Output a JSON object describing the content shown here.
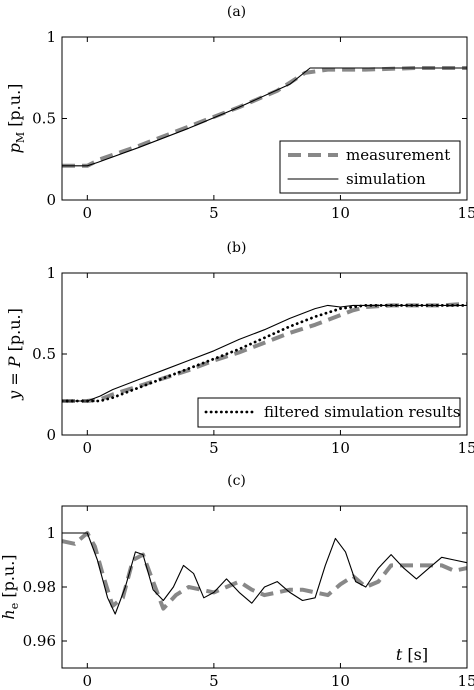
{
  "chart_data": [
    {
      "type": "line",
      "panel_label": "(a)",
      "ylabel": "p_M [p.u.]",
      "ylabel_main": "p",
      "ylabel_sub": "M",
      "ylabel_unit": " [p.u.]",
      "xlim": [
        -1,
        15
      ],
      "ylim": [
        0,
        1
      ],
      "xticks": [
        0,
        5,
        10,
        15
      ],
      "yticks": [
        0,
        0.5,
        1
      ],
      "ytick_labels": [
        "0",
        "0.5",
        "1"
      ],
      "legend_position": "bottom-right",
      "series": [
        {
          "name": "measurement",
          "style": "dashed",
          "color": "#888888",
          "x": [
            -1,
            0,
            0.5,
            2,
            4,
            6,
            7.5,
            8.6,
            9.5,
            11,
            13,
            15
          ],
          "y": [
            0.21,
            0.21,
            0.25,
            0.33,
            0.45,
            0.57,
            0.67,
            0.78,
            0.8,
            0.8,
            0.81,
            0.81
          ]
        },
        {
          "name": "simulation",
          "style": "solid",
          "color": "#000000",
          "x": [
            -1,
            0,
            0.4,
            2,
            4,
            6,
            8,
            8.8,
            9.5,
            11,
            13,
            15
          ],
          "y": [
            0.21,
            0.21,
            0.23,
            0.32,
            0.44,
            0.57,
            0.71,
            0.81,
            0.81,
            0.81,
            0.81,
            0.81
          ]
        }
      ]
    },
    {
      "type": "line",
      "panel_label": "(b)",
      "ylabel": "y = P [p.u.]",
      "ylabel_main": "y = P",
      "ylabel_unit": " [p.u.]",
      "xlim": [
        -1,
        15
      ],
      "ylim": [
        0,
        1
      ],
      "xticks": [
        0,
        5,
        10,
        15
      ],
      "yticks": [
        0,
        0.5,
        1
      ],
      "ytick_labels": [
        "0",
        "0.5",
        "1"
      ],
      "legend_position": "bottom-right",
      "series": [
        {
          "style": "dashed",
          "color": "#888888",
          "x": [
            -1,
            0,
            0.5,
            1,
            2,
            3,
            4,
            5,
            6,
            7,
            8,
            9,
            10,
            10.5,
            11,
            12,
            13,
            14,
            15
          ],
          "y": [
            0.21,
            0.21,
            0.22,
            0.25,
            0.3,
            0.35,
            0.4,
            0.46,
            0.51,
            0.57,
            0.63,
            0.68,
            0.74,
            0.77,
            0.79,
            0.8,
            0.8,
            0.8,
            0.81
          ]
        },
        {
          "style": "solid",
          "color": "#000000",
          "x": [
            -1,
            0,
            0.5,
            1,
            2,
            3,
            4,
            5,
            6,
            7,
            8,
            9,
            9.5,
            10,
            10.5,
            11,
            12,
            13,
            14,
            15
          ],
          "y": [
            0.21,
            0.21,
            0.24,
            0.28,
            0.34,
            0.4,
            0.46,
            0.52,
            0.59,
            0.65,
            0.72,
            0.78,
            0.8,
            0.79,
            0.8,
            0.8,
            0.8,
            0.8,
            0.8,
            0.8
          ]
        },
        {
          "name": "filtered simulation results",
          "style": "dotted",
          "color": "#000000",
          "x": [
            -1,
            0,
            0.5,
            1,
            2,
            3,
            4,
            5,
            6,
            7,
            8,
            9,
            10,
            10.5,
            11,
            12,
            13,
            14,
            15
          ],
          "y": [
            0.21,
            0.21,
            0.21,
            0.23,
            0.29,
            0.35,
            0.41,
            0.47,
            0.53,
            0.6,
            0.67,
            0.73,
            0.78,
            0.79,
            0.8,
            0.8,
            0.8,
            0.8,
            0.8
          ]
        }
      ]
    },
    {
      "type": "line",
      "panel_label": "(c)",
      "ylabel": "h_e [p.u.]",
      "ylabel_main": "h",
      "ylabel_sub": "e",
      "ylabel_unit": " [p.u.]",
      "xlabel": "t [s]",
      "xlabel_main": "t",
      "xlabel_unit": " [s]",
      "xlim": [
        -1,
        15
      ],
      "ylim": [
        0.95,
        1.01
      ],
      "xticks": [
        0,
        5,
        10,
        15
      ],
      "yticks": [
        0.96,
        0.98,
        1
      ],
      "ytick_labels": [
        "0.96",
        "0.98",
        "1"
      ],
      "series": [
        {
          "style": "dashed",
          "color": "#888888",
          "x": [
            -1,
            -0.5,
            0,
            0.3,
            0.6,
            1.0,
            1.4,
            1.8,
            2.2,
            2.6,
            3.0,
            3.5,
            4.0,
            4.5,
            5.0,
            5.5,
            6.0,
            6.5,
            7.0,
            7.5,
            8.0,
            8.5,
            9.0,
            9.5,
            10.0,
            10.5,
            11.0,
            11.5,
            12.0,
            12.5,
            13.0,
            13.5,
            14.0,
            14.5,
            15
          ],
          "y": [
            0.997,
            0.996,
            1.0,
            0.995,
            0.985,
            0.973,
            0.976,
            0.99,
            0.992,
            0.982,
            0.972,
            0.977,
            0.98,
            0.979,
            0.978,
            0.98,
            0.982,
            0.979,
            0.977,
            0.978,
            0.979,
            0.979,
            0.978,
            0.977,
            0.981,
            0.984,
            0.98,
            0.982,
            0.988,
            0.988,
            0.988,
            0.988,
            0.988,
            0.986,
            0.987
          ]
        },
        {
          "style": "solid",
          "color": "#000000",
          "x": [
            -1,
            -0.5,
            0,
            0.4,
            0.8,
            1.1,
            1.5,
            1.9,
            2.2,
            2.6,
            3.0,
            3.4,
            3.8,
            4.2,
            4.6,
            5.0,
            5.5,
            6.0,
            6.5,
            7.0,
            7.5,
            8.0,
            8.5,
            9.0,
            9.4,
            9.8,
            10.2,
            10.6,
            11.0,
            11.5,
            12.0,
            12.5,
            13.0,
            13.5,
            14.0,
            14.5,
            15
          ],
          "y": [
            1.0,
            1.0,
            1.0,
            0.99,
            0.976,
            0.97,
            0.98,
            0.993,
            0.992,
            0.979,
            0.975,
            0.98,
            0.988,
            0.985,
            0.976,
            0.978,
            0.983,
            0.978,
            0.974,
            0.98,
            0.982,
            0.978,
            0.975,
            0.976,
            0.988,
            0.998,
            0.993,
            0.982,
            0.98,
            0.987,
            0.992,
            0.987,
            0.983,
            0.987,
            0.991,
            0.99,
            0.989
          ]
        }
      ]
    }
  ]
}
